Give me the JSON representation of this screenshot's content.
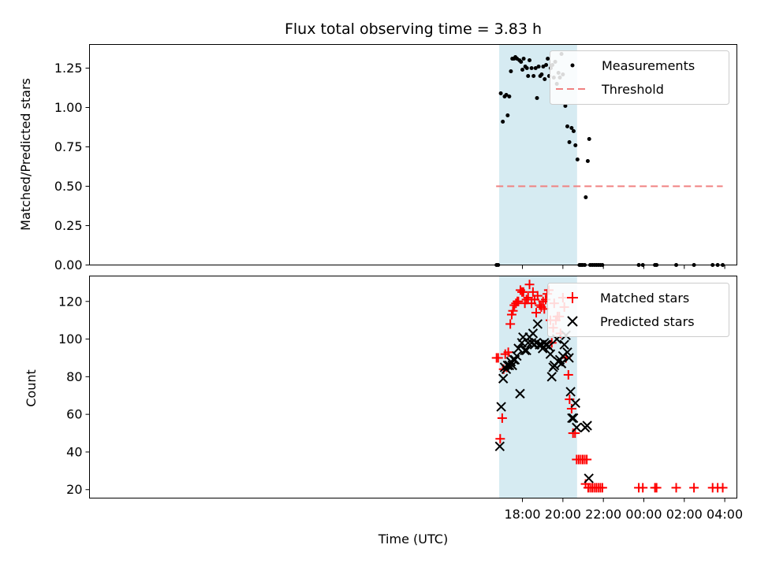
{
  "chart_data": [
    {
      "type": "scatter",
      "title": "Flux total observing time = 3.83 h",
      "xlabel": "",
      "ylabel": "Matched/Predicted stars",
      "xlim": [
        -3.4,
        28.6
      ],
      "ylim": [
        0,
        1.4
      ],
      "x_tick_hours": [
        18,
        20,
        22,
        24,
        26,
        28
      ],
      "x_tick_labels": [
        "18:00",
        "20:00",
        "22:00",
        "00:00",
        "02:00",
        "04:00"
      ],
      "y_ticks": [
        0.0,
        0.25,
        0.5,
        0.75,
        1.0,
        1.25
      ],
      "y_tick_labels": [
        "0.00",
        "0.25",
        "0.50",
        "0.75",
        "1.00",
        "1.25"
      ],
      "shaded_span": [
        16.85,
        20.7
      ],
      "legend": {
        "position": "top-right",
        "entries": [
          "Measurements",
          "Threshold"
        ]
      },
      "threshold": {
        "name": "Threshold",
        "y": 0.5,
        "x_range": [
          16.7,
          27.9
        ],
        "color": "#f08080"
      },
      "series": [
        {
          "name": "Measurements",
          "marker": "dot",
          "color": "#000000",
          "points": [
            [
              16.72,
              0.0
            ],
            [
              16.8,
              0.0
            ],
            [
              16.93,
              1.09
            ],
            [
              17.03,
              0.91
            ],
            [
              17.12,
              1.07
            ],
            [
              17.2,
              1.08
            ],
            [
              17.27,
              0.95
            ],
            [
              17.35,
              1.07
            ],
            [
              17.43,
              1.23
            ],
            [
              17.5,
              1.31
            ],
            [
              17.58,
              1.31
            ],
            [
              17.65,
              1.32
            ],
            [
              17.73,
              1.31
            ],
            [
              17.85,
              1.3
            ],
            [
              17.93,
              1.29
            ],
            [
              18.0,
              1.24
            ],
            [
              18.06,
              1.31
            ],
            [
              18.14,
              1.26
            ],
            [
              18.22,
              1.25
            ],
            [
              18.28,
              1.2
            ],
            [
              18.35,
              1.3
            ],
            [
              18.45,
              1.25
            ],
            [
              18.55,
              1.2
            ],
            [
              18.65,
              1.25
            ],
            [
              18.72,
              1.06
            ],
            [
              18.8,
              1.26
            ],
            [
              18.88,
              1.2
            ],
            [
              18.95,
              1.21
            ],
            [
              19.03,
              1.26
            ],
            [
              19.1,
              1.18
            ],
            [
              19.17,
              1.27
            ],
            [
              19.25,
              1.31
            ],
            [
              19.32,
              1.2
            ],
            [
              19.4,
              1.25
            ],
            [
              19.48,
              1.27
            ],
            [
              19.55,
              1.19
            ],
            [
              19.62,
              1.29
            ],
            [
              19.7,
              1.15
            ],
            [
              19.78,
              1.22
            ],
            [
              19.85,
              1.19
            ],
            [
              19.93,
              1.34
            ],
            [
              20.0,
              1.21
            ],
            [
              20.12,
              1.01
            ],
            [
              20.22,
              0.88
            ],
            [
              20.32,
              0.78
            ],
            [
              20.43,
              0.87
            ],
            [
              20.53,
              0.85
            ],
            [
              20.62,
              0.76
            ],
            [
              20.72,
              0.67
            ],
            [
              20.82,
              0.0
            ],
            [
              20.9,
              0.0
            ],
            [
              20.98,
              0.0
            ],
            [
              21.08,
              0.0
            ],
            [
              21.13,
              0.43
            ],
            [
              21.23,
              0.66
            ],
            [
              21.3,
              0.8
            ],
            [
              21.35,
              0.0
            ],
            [
              21.45,
              0.0
            ],
            [
              21.55,
              0.0
            ],
            [
              21.65,
              0.0
            ],
            [
              21.75,
              0.0
            ],
            [
              21.85,
              0.0
            ],
            [
              21.95,
              0.0
            ],
            [
              23.75,
              0.0
            ],
            [
              23.95,
              0.0
            ],
            [
              24.55,
              0.0
            ],
            [
              24.63,
              0.0
            ],
            [
              25.6,
              0.0
            ],
            [
              26.48,
              0.0
            ],
            [
              27.4,
              0.0
            ],
            [
              27.65,
              0.0
            ],
            [
              27.9,
              0.0
            ]
          ]
        }
      ]
    },
    {
      "type": "scatter",
      "title": "",
      "xlabel": "Time (UTC)",
      "ylabel": "Count",
      "xlim": [
        -3.4,
        28.6
      ],
      "ylim": [
        15.5,
        133.5
      ],
      "x_tick_hours": [
        18,
        20,
        22,
        24,
        26,
        28
      ],
      "x_tick_labels": [
        "18:00",
        "20:00",
        "22:00",
        "00:00",
        "02:00",
        "04:00"
      ],
      "y_ticks": [
        20,
        40,
        60,
        80,
        100,
        120
      ],
      "y_tick_labels": [
        "20",
        "40",
        "60",
        "80",
        "100",
        "120"
      ],
      "shaded_span": [
        16.85,
        20.7
      ],
      "legend": {
        "position": "top-right",
        "entries": [
          "Matched stars",
          "Predicted stars"
        ]
      },
      "series": [
        {
          "name": "Matched stars",
          "marker": "plus",
          "color": "#ff0000",
          "points": [
            [
              16.72,
              90
            ],
            [
              16.8,
              90
            ],
            [
              16.9,
              47
            ],
            [
              17.0,
              58
            ],
            [
              17.07,
              84
            ],
            [
              17.15,
              92
            ],
            [
              17.22,
              85
            ],
            [
              17.3,
              93
            ],
            [
              17.4,
              108
            ],
            [
              17.47,
              113
            ],
            [
              17.53,
              115
            ],
            [
              17.6,
              118
            ],
            [
              17.68,
              119
            ],
            [
              17.75,
              120
            ],
            [
              17.8,
              120
            ],
            [
              17.9,
              126
            ],
            [
              17.98,
              125
            ],
            [
              18.05,
              125
            ],
            [
              18.12,
              119
            ],
            [
              18.2,
              121
            ],
            [
              18.28,
              122
            ],
            [
              18.35,
              129
            ],
            [
              18.45,
              119
            ],
            [
              18.52,
              125
            ],
            [
              18.6,
              121
            ],
            [
              18.68,
              114
            ],
            [
              18.75,
              123
            ],
            [
              18.85,
              118
            ],
            [
              18.93,
              117
            ],
            [
              19.02,
              120
            ],
            [
              19.08,
              116
            ],
            [
              19.15,
              121
            ],
            [
              19.23,
              124
            ],
            [
              19.3,
              126
            ],
            [
              19.38,
              110
            ],
            [
              19.45,
              98
            ],
            [
              19.52,
              106
            ],
            [
              19.57,
              119
            ],
            [
              19.65,
              110
            ],
            [
              19.73,
              112
            ],
            [
              19.82,
              112
            ],
            [
              19.88,
              103
            ],
            [
              20.0,
              122
            ],
            [
              20.07,
              117
            ],
            [
              20.15,
              90
            ],
            [
              20.27,
              81
            ],
            [
              20.33,
              68
            ],
            [
              20.43,
              63
            ],
            [
              20.5,
              50
            ],
            [
              20.6,
              50
            ],
            [
              20.68,
              36
            ],
            [
              20.78,
              36
            ],
            [
              20.88,
              36
            ],
            [
              20.98,
              36
            ],
            [
              21.08,
              36
            ],
            [
              21.18,
              36
            ],
            [
              21.12,
              23
            ],
            [
              21.25,
              21
            ],
            [
              21.35,
              21
            ],
            [
              21.45,
              21
            ],
            [
              21.55,
              21
            ],
            [
              21.65,
              21
            ],
            [
              21.75,
              21
            ],
            [
              21.85,
              21
            ],
            [
              21.95,
              21
            ],
            [
              23.75,
              21
            ],
            [
              23.95,
              21
            ],
            [
              24.55,
              21
            ],
            [
              24.63,
              21
            ],
            [
              25.6,
              21
            ],
            [
              26.48,
              21
            ],
            [
              27.4,
              21
            ],
            [
              27.65,
              21
            ],
            [
              27.9,
              21
            ]
          ]
        },
        {
          "name": "Predicted stars",
          "marker": "x",
          "color": "#000000",
          "points": [
            [
              16.88,
              43
            ],
            [
              16.95,
              64
            ],
            [
              17.05,
              79
            ],
            [
              17.12,
              85
            ],
            [
              17.2,
              84
            ],
            [
              17.27,
              86
            ],
            [
              17.35,
              86
            ],
            [
              17.43,
              88
            ],
            [
              17.5,
              86
            ],
            [
              17.57,
              89
            ],
            [
              17.63,
              89
            ],
            [
              17.72,
              91
            ],
            [
              17.8,
              95
            ],
            [
              17.88,
              71
            ],
            [
              17.97,
              98
            ],
            [
              18.03,
              101
            ],
            [
              18.12,
              94
            ],
            [
              18.2,
              94
            ],
            [
              18.28,
              98
            ],
            [
              18.35,
              101
            ],
            [
              18.45,
              98
            ],
            [
              18.52,
              103
            ],
            [
              18.6,
              97
            ],
            [
              18.68,
              98
            ],
            [
              18.75,
              108
            ],
            [
              18.85,
              97
            ],
            [
              18.93,
              97
            ],
            [
              19.0,
              95
            ],
            [
              19.08,
              98
            ],
            [
              19.15,
              97
            ],
            [
              19.22,
              97
            ],
            [
              19.3,
              96
            ],
            [
              19.38,
              92
            ],
            [
              19.45,
              80
            ],
            [
              19.52,
              85
            ],
            [
              19.58,
              86
            ],
            [
              19.7,
              100
            ],
            [
              19.78,
              88
            ],
            [
              19.85,
              89
            ],
            [
              19.93,
              87
            ],
            [
              20.0,
              91
            ],
            [
              20.07,
              97
            ],
            [
              20.15,
              102
            ],
            [
              20.22,
              93
            ],
            [
              20.3,
              90
            ],
            [
              20.38,
              72
            ],
            [
              20.45,
              58
            ],
            [
              20.52,
              58
            ],
            [
              20.62,
              66
            ],
            [
              20.68,
              53
            ],
            [
              21.1,
              53
            ],
            [
              21.2,
              54
            ],
            [
              21.28,
              26
            ]
          ]
        }
      ]
    }
  ]
}
